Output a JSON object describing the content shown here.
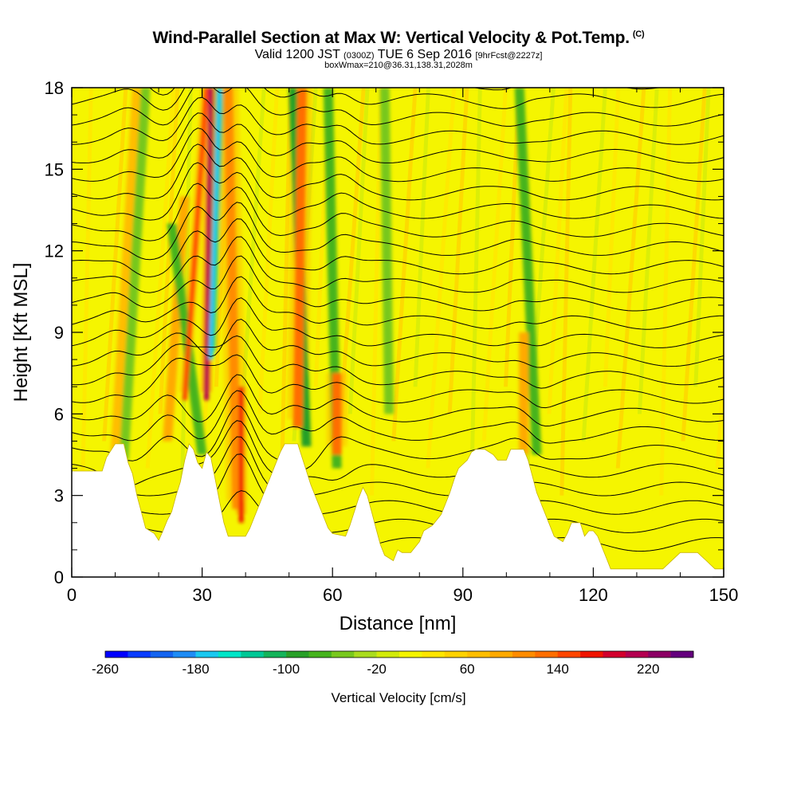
{
  "header": {
    "title": "Wind-Parallel Section at Max W: Vertical Velocity & Pot.Temp.",
    "title_tag": "(C)",
    "valid_prefix": "Valid 1200 JST",
    "valid_zulu": "(0300Z)",
    "valid_date": "TUE 6 Sep 2016",
    "forecast": "[9hrFcst@2227z]",
    "box_info": "boxWmax=210@36.31,138.31,2028m"
  },
  "chart_data": {
    "type": "heatmap",
    "xlabel": "Distance [nm]",
    "ylabel": "Height [Kft MSL]",
    "xlim": [
      0,
      150
    ],
    "ylim": [
      0,
      18
    ],
    "x_ticks": [
      0,
      30,
      60,
      90,
      120,
      150
    ],
    "x_tick_labels": [
      "0",
      "30",
      "60",
      "90",
      "120",
      "150"
    ],
    "y_ticks": [
      0,
      3,
      6,
      9,
      12,
      15,
      18
    ],
    "y_tick_labels": [
      "0",
      "3",
      "6",
      "9",
      "12",
      "15",
      "18"
    ],
    "colorbar": {
      "label": "Vertical Velocity [cm/s]",
      "tick_labels": [
        "-260",
        "-180",
        "-100",
        "-20",
        "60",
        "140",
        "220"
      ],
      "tick_values": [
        -260,
        -180,
        -100,
        -20,
        60,
        140,
        220
      ],
      "levels": [
        -260,
        -240,
        -220,
        -200,
        -180,
        -160,
        -140,
        -120,
        -100,
        -80,
        -60,
        -40,
        -20,
        0,
        20,
        40,
        60,
        80,
        100,
        120,
        140,
        160,
        180,
        200,
        220,
        240
      ],
      "colors": [
        "#0000ff",
        "#0a3cff",
        "#1464f0",
        "#1e8cf5",
        "#19c8f0",
        "#00e6c8",
        "#00c896",
        "#14b45a",
        "#28a028",
        "#46b41e",
        "#78c81e",
        "#aadc1e",
        "#d2eb0a",
        "#f5f500",
        "#ffe600",
        "#ffd200",
        "#ffbe00",
        "#ffaa00",
        "#ff8c00",
        "#ff6e00",
        "#ff4600",
        "#f01400",
        "#d2002d",
        "#b40050",
        "#8c0064",
        "#64007d"
      ]
    },
    "terrain_kft": [
      [
        0,
        3.9
      ],
      [
        7,
        3.9
      ],
      [
        8,
        4.4
      ],
      [
        10,
        4.9
      ],
      [
        12,
        4.9
      ],
      [
        13,
        4.2
      ],
      [
        14,
        3.8
      ],
      [
        15,
        3.0
      ],
      [
        16,
        2.4
      ],
      [
        17,
        1.8
      ],
      [
        19,
        1.6
      ],
      [
        20,
        1.35
      ],
      [
        21,
        1.7
      ],
      [
        22,
        2.1
      ],
      [
        23,
        2.4
      ],
      [
        24,
        3.0
      ],
      [
        25,
        3.5
      ],
      [
        26,
        4.3
      ],
      [
        27,
        4.9
      ],
      [
        28,
        4.7
      ],
      [
        29,
        4.2
      ],
      [
        30,
        4.0
      ],
      [
        31,
        4.6
      ],
      [
        32,
        4.4
      ],
      [
        33,
        3.6
      ],
      [
        34,
        2.8
      ],
      [
        35,
        2.0
      ],
      [
        36,
        1.5
      ],
      [
        40,
        1.5
      ],
      [
        41,
        1.8
      ],
      [
        42,
        2.2
      ],
      [
        43,
        2.6
      ],
      [
        44,
        3.0
      ],
      [
        45,
        3.4
      ],
      [
        46,
        3.8
      ],
      [
        47,
        4.2
      ],
      [
        48,
        4.6
      ],
      [
        49,
        4.9
      ],
      [
        52,
        4.9
      ],
      [
        53,
        4.4
      ],
      [
        54,
        3.9
      ],
      [
        55,
        3.4
      ],
      [
        57,
        2.6
      ],
      [
        58,
        2.2
      ],
      [
        59,
        1.8
      ],
      [
        60,
        1.6
      ],
      [
        63,
        1.5
      ],
      [
        64,
        1.9
      ],
      [
        65,
        2.4
      ],
      [
        66,
        2.9
      ],
      [
        67,
        3.3
      ],
      [
        68,
        3.0
      ],
      [
        69,
        2.4
      ],
      [
        70,
        1.8
      ],
      [
        71,
        1.2
      ],
      [
        72,
        0.8
      ],
      [
        74,
        0.6
      ],
      [
        75,
        1.0
      ],
      [
        76,
        0.9
      ],
      [
        78,
        0.9
      ],
      [
        80,
        1.3
      ],
      [
        81,
        1.7
      ],
      [
        83,
        1.9
      ],
      [
        85,
        2.3
      ],
      [
        86,
        2.7
      ],
      [
        87,
        3.1
      ],
      [
        88,
        3.6
      ],
      [
        89,
        4.0
      ],
      [
        91,
        4.3
      ],
      [
        92,
        4.6
      ],
      [
        93,
        4.7
      ],
      [
        95,
        4.7
      ],
      [
        97,
        4.5
      ],
      [
        98,
        4.3
      ],
      [
        100,
        4.3
      ],
      [
        101,
        4.7
      ],
      [
        104,
        4.7
      ],
      [
        105,
        4.3
      ],
      [
        106,
        3.7
      ],
      [
        107,
        3.1
      ],
      [
        108,
        2.7
      ],
      [
        109,
        2.3
      ],
      [
        110,
        1.9
      ],
      [
        111,
        1.5
      ],
      [
        113,
        1.3
      ],
      [
        114,
        1.6
      ],
      [
        115,
        2.0
      ],
      [
        117,
        2.0
      ],
      [
        118,
        1.5
      ],
      [
        119,
        1.7
      ],
      [
        120,
        1.7
      ],
      [
        121,
        1.5
      ],
      [
        122,
        1.1
      ],
      [
        123,
        0.7
      ],
      [
        124,
        0.3
      ],
      [
        126,
        0.3
      ],
      [
        128,
        0.3
      ],
      [
        133,
        0.3
      ],
      [
        136,
        0.3
      ],
      [
        140,
        0.9
      ],
      [
        142,
        0.9
      ],
      [
        144,
        0.9
      ],
      [
        146,
        0.6
      ],
      [
        148,
        0.3
      ],
      [
        150,
        0.3
      ]
    ],
    "vertical_velocity_bands": [
      {
        "x_bottom": 10,
        "x_top": 15,
        "y_bottom": 4.5,
        "y_top": 18,
        "w_cms": 70
      },
      {
        "x_bottom": 12,
        "x_top": 17,
        "y_bottom": 4.3,
        "y_top": 18,
        "w_cms": -60
      },
      {
        "x_bottom": 22,
        "x_top": 26,
        "y_bottom": 5.0,
        "y_top": 14,
        "w_cms": 90
      },
      {
        "x_bottom": 30,
        "x_top": 23,
        "y_bottom": 4.5,
        "y_top": 13,
        "w_cms": -80
      },
      {
        "x_bottom": 26,
        "x_top": 31,
        "y_bottom": 6.5,
        "y_top": 18,
        "w_cms": 150
      },
      {
        "x_bottom": 31,
        "x_top": 32,
        "y_bottom": 6.5,
        "y_top": 18,
        "w_cms": 210
      },
      {
        "x_bottom": 32,
        "x_top": 34,
        "y_bottom": 8.0,
        "y_top": 18,
        "w_cms": -170
      },
      {
        "x_bottom": 38,
        "x_top": 36,
        "y_bottom": 2.5,
        "y_top": 18,
        "w_cms": 110
      },
      {
        "x_bottom": 39,
        "x_top": 39,
        "y_bottom": 2.0,
        "y_top": 7.0,
        "w_cms": 170
      },
      {
        "x_bottom": 54,
        "x_top": 51,
        "y_bottom": 4.8,
        "y_top": 18,
        "w_cms": -90
      },
      {
        "x_bottom": 52,
        "x_top": 53,
        "y_bottom": 5.5,
        "y_top": 18,
        "w_cms": 120
      },
      {
        "x_bottom": 61,
        "x_top": 59,
        "y_bottom": 4.0,
        "y_top": 18,
        "w_cms": -70
      },
      {
        "x_bottom": 61,
        "x_top": 61,
        "y_bottom": 4.5,
        "y_top": 7.5,
        "w_cms": 130
      },
      {
        "x_bottom": 73,
        "x_top": 72,
        "y_bottom": 6.0,
        "y_top": 18,
        "w_cms": -50
      },
      {
        "x_bottom": 107,
        "x_top": 103,
        "y_bottom": 4.5,
        "y_top": 18,
        "w_cms": -70
      },
      {
        "x_bottom": 104,
        "x_top": 104,
        "y_bottom": 4.5,
        "y_top": 9.0,
        "w_cms": 80
      }
    ],
    "potential_temperature_levels_count": 26,
    "grid": false,
    "legend": "colorbar-bottom"
  }
}
